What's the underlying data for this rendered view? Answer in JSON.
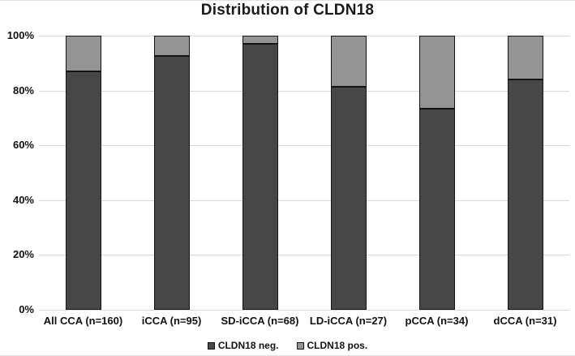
{
  "title": "Distribution of CLDN18",
  "colors": {
    "negative_fill": "#474747",
    "positive_fill": "#949494",
    "bar_border": "#141414",
    "gridline": "#d9d9d9",
    "text": "#111111",
    "background": "#ffffff"
  },
  "chart_data": {
    "type": "bar",
    "stacked": true,
    "title": "Distribution of CLDN18",
    "categories": [
      "All CCA (n=160)",
      "iCCA (n=95)",
      "SD-iCCA (n=68)",
      "LD-iCCA (n=27)",
      "pCCA (n=34)",
      "dCCA (n=31)"
    ],
    "series": [
      {
        "name": "CLDN18 neg.",
        "color": "#474747",
        "values": [
          87,
          92.5,
          97,
          81.5,
          73.5,
          84
        ]
      },
      {
        "name": "CLDN18 pos.",
        "color": "#949494",
        "values": [
          13,
          7.5,
          3,
          18.5,
          26.5,
          16
        ]
      }
    ],
    "xlabel": "",
    "ylabel": "",
    "ylim": [
      0,
      100
    ],
    "yticks": [
      "0%",
      "20%",
      "40%",
      "60%",
      "80%",
      "100%"
    ],
    "grid": true,
    "legend_position": "bottom"
  }
}
